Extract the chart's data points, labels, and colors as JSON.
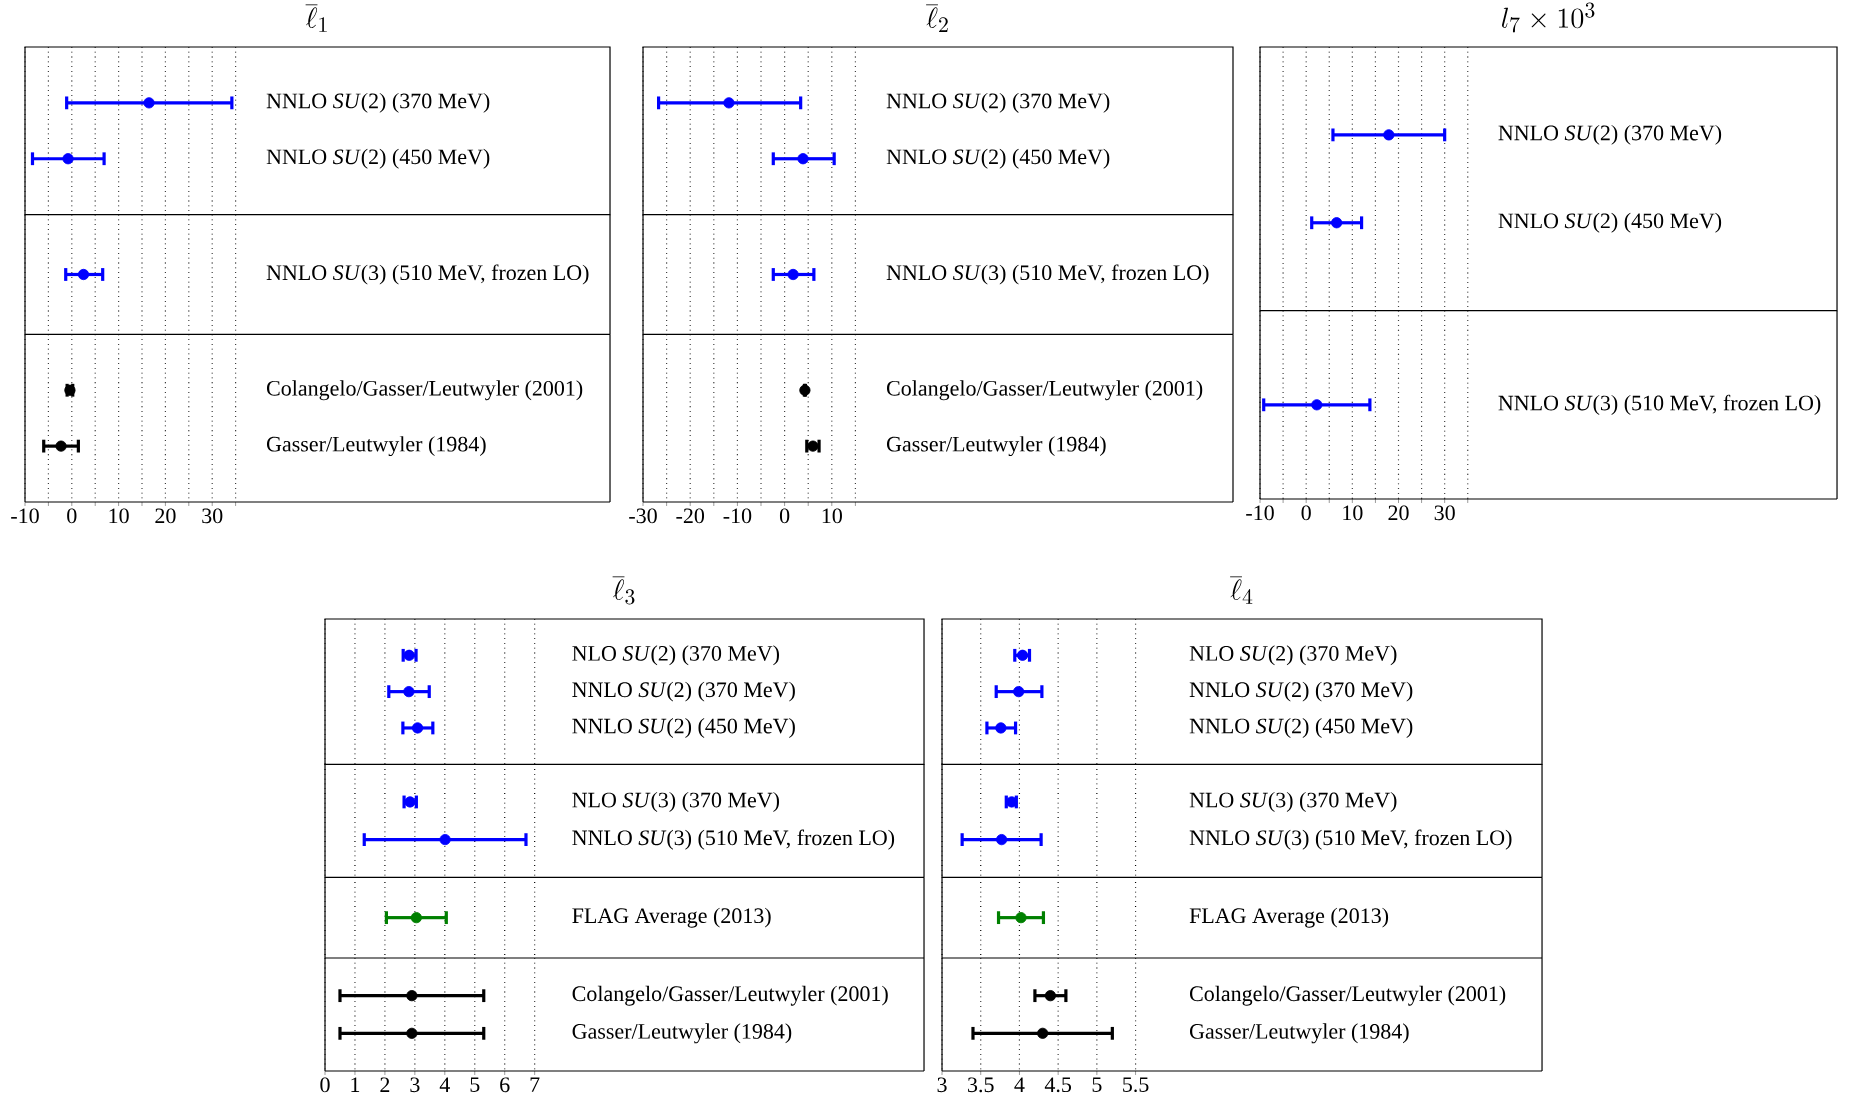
{
  "chart_data": [
    {
      "type": "scatter",
      "title": "\\overline{\\ell}_1",
      "orientation": "horizontal",
      "grid": "x",
      "marker": "circle",
      "tick_labels": "y",
      "categories": [
        "NNLO *SU*(2) (370 MeV)",
        "NNLO *SU*(2) (450 MeV)"
      ],
      "series": [
        {
          "color": "#0000ff",
          "values": [
            16.5,
            -0.8
          ],
          "errors": [
            [
              -1.1,
              34.2
            ],
            [
              -8.4,
              6.9
            ]
          ]
        }
      ],
      "xlim": [
        -10,
        115
      ],
      "xticks": [
        -10,
        {
          "value": -5,
          "label": null
        },
        0,
        {
          "value": 5,
          "label": null
        },
        10,
        {
          "value": 15,
          "label": null
        },
        20,
        {
          "value": 25,
          "label": null
        },
        30,
        {
          "value": 35,
          "label": null
        }
      ]
    },
    {
      "type": "scatter",
      "orientation": "horizontal",
      "grid": "x",
      "marker": "circle",
      "tick_labels": "y",
      "categories": [
        "NNLO *SU*(3) (510 MeV, frozen LO)"
      ],
      "series": [
        {
          "color": "#0000ff",
          "values": [
            2.5
          ],
          "errors": [
            [
              -1.3,
              6.6
            ]
          ]
        }
      ],
      "xlim": [
        -10,
        115
      ],
      "xticks": [
        -10,
        {
          "value": -5,
          "label": null
        },
        0,
        {
          "value": 5,
          "label": null
        },
        10,
        {
          "value": 15,
          "label": null
        },
        20,
        {
          "value": 25,
          "label": null
        },
        30,
        {
          "value": 35,
          "label": null
        }
      ]
    },
    {
      "type": "scatter",
      "orientation": "horizontal",
      "grid": "x",
      "marker": "circle",
      "categories": [
        "Colangelo/Gasser/Leutwyler (2001)",
        "Gasser/Leutwyler (1984)"
      ],
      "series": [
        {
          "color": "#000000",
          "values": [
            -0.4,
            -2.3
          ],
          "errors": [
            [
              -1.0,
              0.2
            ],
            [
              -6.0,
              1.4
            ]
          ]
        }
      ],
      "xlim": [
        -10,
        115
      ],
      "xticks": [
        -10,
        {
          "value": -5,
          "label": null
        },
        0,
        {
          "value": 5,
          "label": null
        },
        10,
        {
          "value": 15,
          "label": null
        },
        20,
        {
          "value": 25,
          "label": null
        },
        30,
        {
          "value": 35,
          "label": null
        }
      ]
    },
    {
      "type": "scatter",
      "title": "\\overline{\\ell}_2",
      "orientation": "horizontal",
      "grid": "x",
      "marker": "circle",
      "tick_labels": "y",
      "categories": [
        "NNLO *SU*(2) (370 MeV)",
        "NNLO *SU*(2) (450 MeV)"
      ],
      "series": [
        {
          "color": "#0000ff",
          "values": [
            -11.8,
            3.9
          ],
          "errors": [
            [
              -26.7,
              3.4
            ],
            [
              -2.4,
              10.5
            ]
          ]
        }
      ],
      "xlim": [
        -30,
        95
      ],
      "xticks": [
        -30,
        {
          "value": -25,
          "label": null
        },
        -20,
        {
          "value": -15,
          "label": null
        },
        -10,
        {
          "value": -5,
          "label": null
        },
        0,
        {
          "value": 5,
          "label": null
        },
        10,
        {
          "value": 15,
          "label": null
        }
      ]
    },
    {
      "type": "scatter",
      "orientation": "horizontal",
      "grid": "x",
      "marker": "circle",
      "tick_labels": "y",
      "categories": [
        "NNLO *SU*(3) (510 MeV, frozen LO)"
      ],
      "series": [
        {
          "color": "#0000ff",
          "values": [
            1.8
          ],
          "errors": [
            [
              -2.4,
              6.2
            ]
          ]
        }
      ],
      "xlim": [
        -30,
        95
      ],
      "xticks": [
        -30,
        {
          "value": -25,
          "label": null
        },
        -20,
        {
          "value": -15,
          "label": null
        },
        -10,
        {
          "value": -5,
          "label": null
        },
        0,
        {
          "value": 5,
          "label": null
        },
        10,
        {
          "value": 15,
          "label": null
        }
      ]
    },
    {
      "type": "scatter",
      "orientation": "horizontal",
      "grid": "x",
      "marker": "circle",
      "categories": [
        "Colangelo/Gasser/Leutwyler (2001)",
        "Gasser/Leutwyler (1984)"
      ],
      "series": [
        {
          "color": "#000000",
          "values": [
            4.3,
            6.0
          ],
          "errors": [
            [
              4.2,
              4.4
            ],
            [
              4.7,
              7.3
            ]
          ]
        }
      ],
      "xlim": [
        -30,
        95
      ],
      "xticks": [
        -30,
        {
          "value": -25,
          "label": null
        },
        -20,
        {
          "value": -15,
          "label": null
        },
        -10,
        {
          "value": -5,
          "label": null
        },
        0,
        {
          "value": 5,
          "label": null
        },
        10,
        {
          "value": 15,
          "label": null
        }
      ]
    },
    {
      "type": "scatter",
      "title": "l_7 \\times 10^3",
      "orientation": "horizontal",
      "grid": "x",
      "marker": "circle",
      "tick_labels": "y",
      "categories": [
        "NNLO *SU*(2) (370 MeV)",
        "NNLO *SU*(2) (450 MeV)"
      ],
      "series": [
        {
          "color": "#0000ff",
          "values": [
            17.9,
            6.6
          ],
          "errors": [
            [
              5.8,
              30
            ],
            [
              1.2,
              12
            ]
          ]
        }
      ],
      "xlim": [
        -10,
        115
      ],
      "xticks": [
        -10,
        {
          "value": -5,
          "label": null
        },
        0,
        {
          "value": 5,
          "label": null
        },
        10,
        {
          "value": 15,
          "label": null
        },
        20,
        {
          "value": 25,
          "label": null
        },
        30,
        {
          "value": 35,
          "label": null
        }
      ]
    },
    {
      "type": "scatter",
      "orientation": "horizontal",
      "grid": "x",
      "marker": "circle",
      "categories": [
        "NNLO *SU*(3) (510 MeV, frozen LO)"
      ],
      "series": [
        {
          "color": "#0000ff",
          "values": [
            2.3
          ],
          "errors": [
            [
              -9.2,
              13.8
            ]
          ]
        }
      ],
      "xlim": [
        -10,
        115
      ],
      "xticks": [
        -10,
        {
          "value": -5,
          "label": null
        },
        0,
        {
          "value": 5,
          "label": null
        },
        10,
        {
          "value": 15,
          "label": null
        },
        20,
        {
          "value": 25,
          "label": null
        },
        30,
        {
          "value": 35,
          "label": null
        }
      ]
    },
    {
      "type": "scatter",
      "title": "\\overline{\\ell}_3",
      "orientation": "horizontal",
      "grid": "x",
      "marker": "circle",
      "tick_labels": "y",
      "categories": [
        "NLO *SU*(2) (370 MeV)",
        "NNLO *SU*(2) (370 MeV)",
        "NNLO *SU*(2) (450 MeV)"
      ],
      "series": [
        {
          "color": "#0000ff",
          "values": [
            2.81,
            2.8,
            3.09
          ],
          "errors": [
            [
              2.61,
              3.04
            ],
            [
              2.13,
              3.48
            ],
            [
              2.6,
              3.6
            ]
          ]
        }
      ],
      "xlim": [
        0,
        20
      ],
      "xticks": [
        0,
        1,
        2,
        3,
        4,
        5,
        6,
        7
      ]
    },
    {
      "type": "scatter",
      "orientation": "horizontal",
      "grid": "x",
      "marker": "circle",
      "tick_labels": "y",
      "categories": [
        "NLO *SU*(3) (370 MeV)",
        "NNLO *SU*(3) (510 MeV, frozen LO)"
      ],
      "series": [
        {
          "color": "#0000ff",
          "values": [
            2.84,
            4.01
          ],
          "errors": [
            [
              2.64,
              3.05
            ],
            [
              1.31,
              6.71
            ]
          ]
        }
      ],
      "xlim": [
        0,
        20
      ],
      "xticks": [
        0,
        1,
        2,
        3,
        4,
        5,
        6,
        7
      ]
    },
    {
      "type": "scatter",
      "orientation": "horizontal",
      "grid": "x",
      "marker": "circle",
      "tick_labels": "y",
      "categories": [
        "FLAG Average (2013)"
      ],
      "series": [
        {
          "color": "#008000",
          "values": [
            3.05
          ],
          "errors": [
            [
              2.05,
              4.05
            ]
          ]
        }
      ],
      "xlim": [
        0,
        20
      ],
      "xticks": [
        0,
        1,
        2,
        3,
        4,
        5,
        6,
        7
      ]
    },
    {
      "type": "scatter",
      "orientation": "horizontal",
      "grid": "x",
      "marker": "circle",
      "categories": [
        "Colangelo/Gasser/Leutwyler (2001)",
        "Gasser/Leutwyler (1984)"
      ],
      "series": [
        {
          "color": "#000000",
          "values": [
            2.9,
            2.9
          ],
          "errors": [
            [
              0.5,
              5.3
            ],
            [
              0.5,
              5.3
            ]
          ]
        }
      ],
      "xlim": [
        0,
        20
      ],
      "xticks": [
        0,
        1,
        2,
        3,
        4,
        5,
        6,
        7
      ]
    },
    {
      "type": "scatter",
      "title": "\\overline{\\ell}_4",
      "orientation": "horizontal",
      "grid": "x",
      "marker": "circle",
      "tick_labels": "y",
      "categories": [
        "NLO *SU*(2) (370 MeV)",
        "NNLO *SU*(2) (370 MeV)",
        "NNLO *SU*(2) (450 MeV)"
      ],
      "series": [
        {
          "color": "#0000ff",
          "values": [
            4.04,
            3.99,
            3.76
          ],
          "errors": [
            [
              3.94,
              4.13
            ],
            [
              3.7,
              4.29
            ],
            [
              3.58,
              3.95
            ]
          ]
        }
      ],
      "xlim": [
        3,
        10.75
      ],
      "xticks": [
        3,
        3.5,
        4,
        4.5,
        5,
        5.5
      ]
    },
    {
      "type": "scatter",
      "orientation": "horizontal",
      "grid": "x",
      "marker": "circle",
      "tick_labels": "y",
      "categories": [
        "NLO *SU*(3) (370 MeV)",
        "NNLO *SU*(3) (510 MeV, frozen LO)"
      ],
      "series": [
        {
          "color": "#0000ff",
          "values": [
            3.9,
            3.77
          ],
          "errors": [
            [
              3.83,
              3.96
            ],
            [
              3.26,
              4.28
            ]
          ]
        }
      ],
      "xlim": [
        3,
        10.75
      ],
      "xticks": [
        3,
        3.5,
        4,
        4.5,
        5,
        5.5
      ]
    },
    {
      "type": "scatter",
      "orientation": "horizontal",
      "grid": "x",
      "marker": "circle",
      "tick_labels": "y",
      "categories": [
        "FLAG Average (2013)"
      ],
      "series": [
        {
          "color": "#008000",
          "values": [
            4.02
          ],
          "errors": [
            [
              3.73,
              4.31
            ]
          ]
        }
      ],
      "xlim": [
        3,
        10.75
      ],
      "xticks": [
        3,
        3.5,
        4,
        4.5,
        5,
        5.5
      ]
    },
    {
      "type": "scatter",
      "orientation": "horizontal",
      "grid": "x",
      "marker": "circle",
      "categories": [
        "Colangelo/Gasser/Leutwyler (2001)",
        "Gasser/Leutwyler (1984)"
      ],
      "series": [
        {
          "color": "#000000",
          "values": [
            4.4,
            4.3
          ],
          "errors": [
            [
              4.2,
              4.6
            ],
            [
              3.4,
              5.2
            ]
          ]
        }
      ],
      "xlim": [
        3,
        10.75
      ],
      "xticks": [
        3,
        3.5,
        4,
        4.5,
        5,
        5.5
      ]
    }
  ]
}
